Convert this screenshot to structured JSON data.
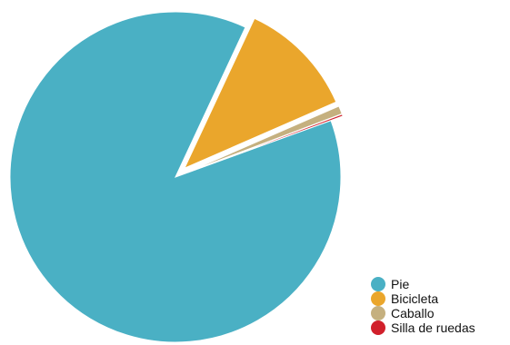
{
  "chart_data": {
    "type": "pie",
    "title": "",
    "categories": [
      "Pie",
      "Bicicleta",
      "Caballo",
      "Silla de ruedas"
    ],
    "values": [
      87.5,
      11.5,
      0.8,
      0.2
    ],
    "unit": "",
    "colors": [
      "#4ab0c4",
      "#eaa62c",
      "#c5b07f",
      "#d1202b"
    ],
    "exploded": [
      "Bicicleta",
      "Caballo",
      "Silla de ruedas"
    ],
    "legend": {
      "position": "bottom-right",
      "entries": [
        "Pie",
        "Bicicleta",
        "Caballo",
        "Silla de ruedas"
      ]
    }
  }
}
